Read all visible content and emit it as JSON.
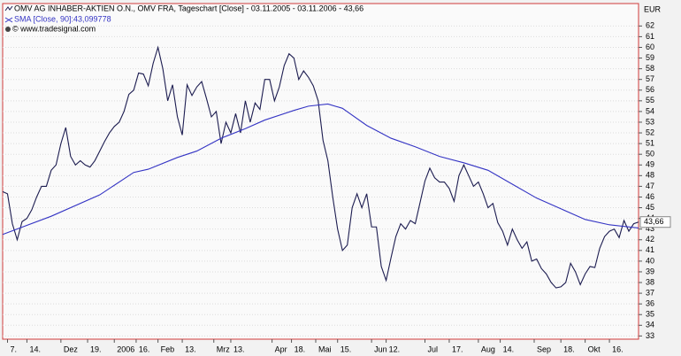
{
  "chart_data": {
    "type": "line",
    "title": "OMV AG INHABER-AKTIEN O.N., OMV FRA, Tageschart [Close] - 03.11.2005 - 03.11.2006 - 43,66",
    "subtitle": "SMA [Close, 90]:43,099778",
    "annotation": "© www.tradesignal.com",
    "y_axis_label": "EUR",
    "last_price": {
      "value": 43.66,
      "label": "43,66"
    },
    "grid": true,
    "xlim": [
      0,
      262
    ],
    "ylim": [
      32.7,
      64.1
    ],
    "yticks": [
      33,
      34,
      35,
      36,
      37,
      38,
      39,
      40,
      41,
      42,
      43,
      44,
      45,
      46,
      47,
      48,
      49,
      50,
      51,
      52,
      53,
      54,
      55,
      56,
      57,
      58,
      59,
      60,
      61,
      62
    ],
    "xticks": [
      {
        "value": 2,
        "label": "7."
      },
      {
        "value": 10,
        "label": "14."
      },
      {
        "value": 24,
        "label": "Dez"
      },
      {
        "value": 35,
        "label": "19."
      },
      {
        "value": 46,
        "label": "2006"
      },
      {
        "value": 55,
        "label": "16."
      },
      {
        "value": 64,
        "label": "Feb"
      },
      {
        "value": 74,
        "label": "13."
      },
      {
        "value": 87,
        "label": "Mrz"
      },
      {
        "value": 94,
        "label": "13."
      },
      {
        "value": 111,
        "label": "Apr"
      },
      {
        "value": 119,
        "label": "18."
      },
      {
        "value": 129,
        "label": "Mai"
      },
      {
        "value": 138,
        "label": "15."
      },
      {
        "value": 152,
        "label": "Jun"
      },
      {
        "value": 158,
        "label": "12."
      },
      {
        "value": 174,
        "label": "Jul"
      },
      {
        "value": 184,
        "label": "17."
      },
      {
        "value": 196,
        "label": "Aug"
      },
      {
        "value": 205,
        "label": "14."
      },
      {
        "value": 219,
        "label": "Sep"
      },
      {
        "value": 230,
        "label": "18."
      },
      {
        "value": 240,
        "label": "Okt"
      },
      {
        "value": 250,
        "label": "16."
      }
    ],
    "series": [
      {
        "name": "OMV AG INHABER-AKTIEN O.N.",
        "color": "#1c1c50",
        "x": [
          0,
          2,
          4,
          6,
          8,
          10,
          12,
          14,
          16,
          18,
          20,
          22,
          24,
          26,
          28,
          30,
          32,
          34,
          36,
          38,
          40,
          42,
          44,
          46,
          48,
          50,
          52,
          54,
          56,
          58,
          60,
          62,
          64,
          66,
          68,
          70,
          72,
          74,
          76,
          78,
          80,
          82,
          84,
          86,
          88,
          90,
          92,
          94,
          96,
          98,
          100,
          102,
          104,
          106,
          108,
          110,
          112,
          114,
          116,
          118,
          120,
          122,
          124,
          126,
          128,
          130,
          132,
          134,
          136,
          138,
          140,
          142,
          144,
          146,
          148,
          150,
          152,
          154,
          156,
          158,
          160,
          162,
          164,
          166,
          168,
          170,
          172,
          174,
          176,
          178,
          180,
          182,
          184,
          186,
          188,
          190,
          192,
          194,
          196,
          198,
          200,
          202,
          204,
          206,
          208,
          210,
          212,
          214,
          216,
          218,
          220,
          222,
          224,
          226,
          228,
          230,
          232,
          234,
          236,
          238,
          240,
          242,
          244,
          246,
          248,
          250,
          252,
          254,
          256,
          258,
          260,
          262
        ],
        "values": [
          46.5,
          46.3,
          43.5,
          42,
          43.7,
          44,
          44.8,
          46,
          47,
          47,
          48.5,
          49,
          51,
          52.5,
          49.8,
          49,
          49.4,
          49,
          48.8,
          49.4,
          50.3,
          51.2,
          52,
          52.6,
          53,
          54,
          55.6,
          56,
          57.6,
          57.5,
          56.4,
          58.5,
          60,
          58,
          55,
          56.5,
          53.5,
          51.8,
          56.5,
          55.5,
          56.3,
          56.8,
          55.2,
          53.5,
          54,
          51,
          53,
          52,
          53.8,
          52,
          55,
          53,
          54.8,
          54.2,
          57,
          57,
          55,
          56.3,
          58.3,
          59.4,
          59,
          57,
          57.8,
          57.2,
          56.4,
          55,
          51.3,
          49.4,
          46,
          43,
          41,
          41.5,
          45,
          46.3,
          45,
          46.3,
          43.2,
          43.2,
          39.5,
          38.2,
          40.3,
          42.3,
          43.5,
          43,
          43.8,
          43.5,
          45.5,
          47.5,
          48.7,
          47.8,
          47.4,
          47.4,
          46.8,
          45.6,
          48,
          49,
          48,
          47,
          47.4,
          46.3,
          45,
          45.4,
          43.6,
          42.8,
          41.5,
          43,
          42,
          41.2,
          41.8,
          40,
          40.2,
          39.3,
          38.8,
          38,
          37.5,
          37.6,
          38,
          39.8,
          39,
          37.8,
          38.8,
          39.5,
          39.4,
          41.2,
          42.3,
          42.8,
          43,
          42.2,
          43.8,
          42.8,
          43.5,
          43.66
        ]
      },
      {
        "name": "SMA [Close, 90]",
        "color": "#3434c4",
        "x": [
          0,
          20,
          40,
          54,
          60,
          72,
          80,
          90,
          100,
          108,
          120,
          126,
          134,
          140,
          150,
          160,
          170,
          180,
          190,
          200,
          210,
          220,
          230,
          240,
          250,
          262
        ],
        "values": [
          42.5,
          44.2,
          46.2,
          48.3,
          48.6,
          49.7,
          50.3,
          51.5,
          52.4,
          53.2,
          54.1,
          54.5,
          54.7,
          54.3,
          52.7,
          51.5,
          50.7,
          49.8,
          49.2,
          48.5,
          47.2,
          45.9,
          44.9,
          43.9,
          43.4,
          43.1
        ]
      }
    ]
  }
}
